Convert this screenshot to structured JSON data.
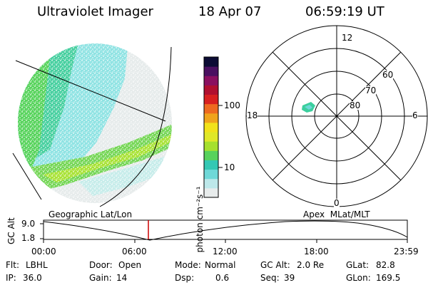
{
  "header": {
    "instrument": "Ultraviolet Imager",
    "date": "18 Apr 07",
    "time": "06:59:19 UT"
  },
  "colorbar": {
    "label": "photon cm⁻²s⁻¹",
    "ticks": [
      "100",
      "10"
    ],
    "scale": "log",
    "colors": [
      "#e8ecec",
      "#bde8ea",
      "#6fd8d8",
      "#34c8b4",
      "#58d25c",
      "#a6e02e",
      "#e0e828",
      "#f2e21a",
      "#f0a41c",
      "#ee6a20",
      "#d82020",
      "#b01030",
      "#8a1060",
      "#4a1060",
      "#0c0c34"
    ]
  },
  "polar_plot": {
    "mlt_labels": {
      "top": "12",
      "left": "18",
      "right": "6",
      "bottom": "0"
    },
    "lat_labels": [
      "60",
      "70",
      "80"
    ]
  },
  "mapping_labels": {
    "left": "Geographic Lat/Lon",
    "right": "Apex  MLat/MLT"
  },
  "timeline": {
    "ylabel": "GC Alt",
    "y_ticks": [
      "9.0",
      "1.8"
    ],
    "x_ticks": [
      "00:00",
      "06:00",
      "12:00",
      "18:00",
      "23:59"
    ],
    "current_time_marker": "06:59"
  },
  "status": {
    "row1": [
      {
        "label": "Flt:",
        "value": "LBHL"
      },
      {
        "label": "Door:",
        "value": "Open"
      },
      {
        "label": "Mode:",
        "value": "Normal"
      },
      {
        "label": "GC Alt:",
        "value": "2.0 Re"
      },
      {
        "label": "GLat:",
        "value": "82.8"
      }
    ],
    "row2": [
      {
        "label": "IP:",
        "value": "36.0"
      },
      {
        "label": "Gain:",
        "value": "14"
      },
      {
        "label": "Dsp:",
        "value": "0.6"
      },
      {
        "label": "Seq:",
        "value": "39"
      },
      {
        "label": "GLon:",
        "value": "169.5"
      }
    ]
  },
  "colors": {
    "time_marker": "#cc0000",
    "foreground": "#000000",
    "background": "#ffffff"
  }
}
